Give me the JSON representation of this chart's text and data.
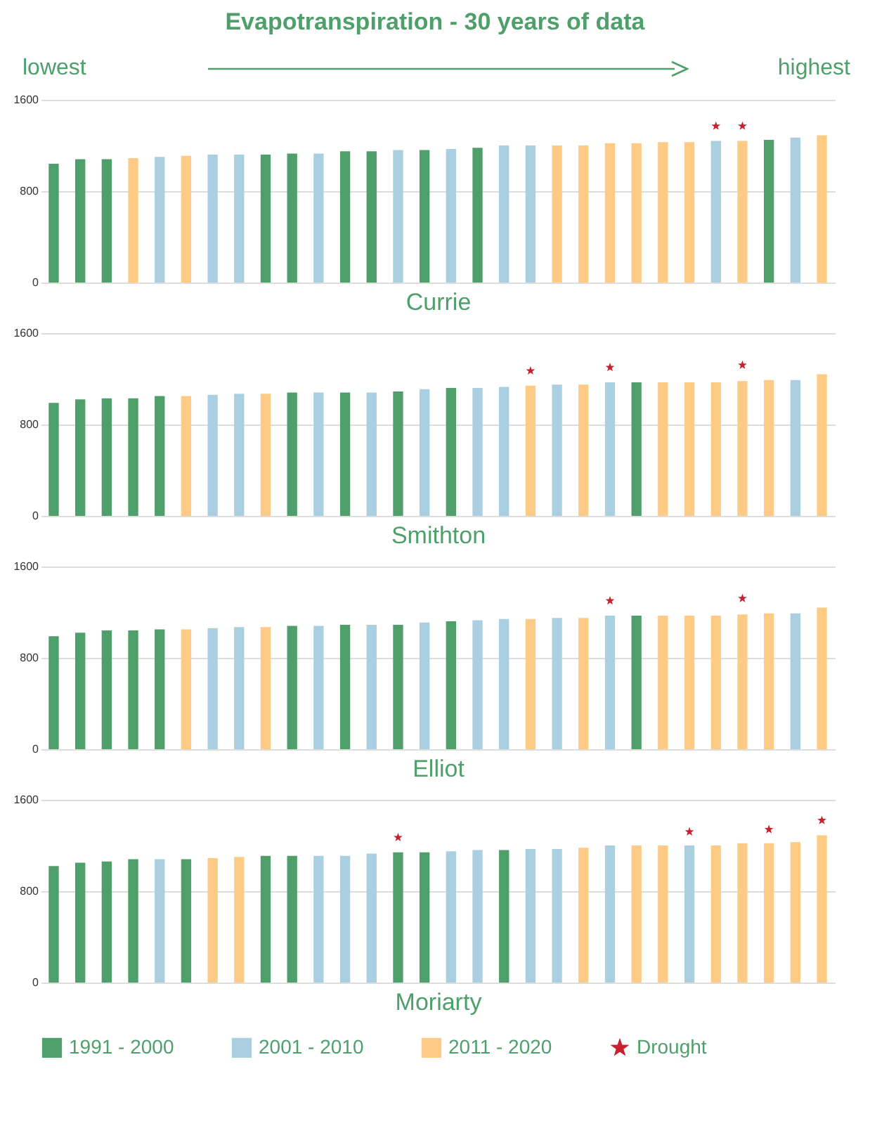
{
  "chart_data": [
    {
      "type": "bar",
      "title": "Evapotranspiration - 30 years of data",
      "annotations": [
        "lowest",
        "highest"
      ],
      "xlabel": "Currie",
      "categories": [
        null,
        null,
        null,
        null,
        null,
        null,
        null,
        null,
        null,
        null,
        null,
        null,
        null,
        null,
        null,
        null,
        null,
        null,
        null,
        null,
        null,
        null,
        null,
        null,
        null,
        null,
        null,
        null,
        null,
        null
      ],
      "ylim": [
        0,
        1600
      ],
      "yticks": [
        0,
        800,
        1600
      ],
      "grid": "y",
      "tick_labels": "y",
      "legend": false,
      "series": [
        {
          "color": "#4e9f6a",
          "values": [
            1040,
            1080,
            1080,
            null,
            null,
            null,
            null,
            null,
            1120,
            1130,
            null,
            1150,
            1150,
            null,
            1160,
            null,
            1180,
            null,
            null,
            null,
            null,
            null,
            null,
            null,
            null,
            null,
            null,
            1250,
            null,
            null
          ]
        },
        {
          "color": "#a9cfe0",
          "values": [
            null,
            null,
            null,
            null,
            1100,
            null,
            1120,
            1120,
            null,
            null,
            1130,
            null,
            null,
            1160,
            null,
            1170,
            null,
            1200,
            1200,
            null,
            null,
            null,
            null,
            null,
            null,
            1240,
            null,
            null,
            1270,
            null
          ]
        },
        {
          "color": "#fdcb85",
          "values": [
            null,
            null,
            null,
            1090,
            null,
            1110,
            null,
            null,
            null,
            null,
            null,
            null,
            null,
            null,
            null,
            null,
            null,
            null,
            null,
            1200,
            1200,
            1220,
            1220,
            1230,
            1230,
            null,
            1240,
            null,
            null,
            1290
          ]
        },
        {
          "type": "scatter",
          "marker": "star",
          "color": "#c8202e",
          "values": [
            null,
            null,
            null,
            null,
            null,
            null,
            null,
            null,
            null,
            null,
            null,
            null,
            null,
            null,
            null,
            null,
            null,
            null,
            null,
            null,
            null,
            null,
            null,
            null,
            null,
            1370,
            1370,
            null,
            null,
            null
          ]
        }
      ]
    },
    {
      "type": "bar",
      "xlabel": "Smithton",
      "categories": [
        null,
        null,
        null,
        null,
        null,
        null,
        null,
        null,
        null,
        null,
        null,
        null,
        null,
        null,
        null,
        null,
        null,
        null,
        null,
        null,
        null,
        null,
        null,
        null,
        null,
        null,
        null,
        null,
        null,
        null
      ],
      "ylim": [
        0,
        1600
      ],
      "yticks": [
        0,
        800,
        1600
      ],
      "grid": "y",
      "tick_labels": "y",
      "legend": false,
      "series": [
        {
          "color": "#4e9f6a",
          "values": [
            990,
            1020,
            1030,
            1030,
            1050,
            null,
            null,
            null,
            null,
            1080,
            null,
            1080,
            null,
            1090,
            null,
            1120,
            null,
            null,
            null,
            null,
            null,
            null,
            1170,
            null,
            null,
            null,
            null,
            null,
            null,
            null
          ]
        },
        {
          "color": "#a9cfe0",
          "values": [
            null,
            null,
            null,
            null,
            null,
            null,
            1060,
            1070,
            null,
            null,
            1080,
            null,
            1080,
            null,
            1110,
            null,
            1120,
            1130,
            null,
            1150,
            null,
            1170,
            null,
            null,
            null,
            null,
            null,
            null,
            1190,
            null
          ]
        },
        {
          "color": "#fdcb85",
          "values": [
            null,
            null,
            null,
            null,
            null,
            1050,
            null,
            null,
            1070,
            null,
            null,
            null,
            null,
            null,
            null,
            null,
            null,
            null,
            1140,
            null,
            1150,
            null,
            null,
            1170,
            1170,
            1170,
            1180,
            1190,
            null,
            1240
          ]
        },
        {
          "type": "scatter",
          "marker": "star",
          "color": "#c8202e",
          "values": [
            null,
            null,
            null,
            null,
            null,
            null,
            null,
            null,
            null,
            null,
            null,
            null,
            null,
            null,
            null,
            null,
            null,
            null,
            1270,
            null,
            null,
            1300,
            null,
            null,
            null,
            null,
            1320,
            null,
            null,
            null
          ]
        }
      ]
    },
    {
      "type": "bar",
      "xlabel": "Elliot",
      "categories": [
        null,
        null,
        null,
        null,
        null,
        null,
        null,
        null,
        null,
        null,
        null,
        null,
        null,
        null,
        null,
        null,
        null,
        null,
        null,
        null,
        null,
        null,
        null,
        null,
        null,
        null,
        null,
        null,
        null,
        null
      ],
      "ylim": [
        0,
        1600
      ],
      "yticks": [
        0,
        800,
        1600
      ],
      "grid": "y",
      "tick_labels": "y",
      "legend": false,
      "series": [
        {
          "color": "#4e9f6a",
          "values": [
            990,
            1020,
            1040,
            1040,
            1050,
            null,
            null,
            null,
            null,
            1080,
            null,
            1090,
            null,
            1090,
            null,
            1120,
            null,
            null,
            null,
            null,
            null,
            null,
            1170,
            null,
            null,
            null,
            null,
            null,
            null,
            null
          ]
        },
        {
          "color": "#a9cfe0",
          "values": [
            null,
            null,
            null,
            null,
            null,
            null,
            1060,
            1070,
            null,
            null,
            1080,
            null,
            1090,
            null,
            1110,
            null,
            1130,
            1140,
            null,
            1150,
            null,
            1170,
            null,
            null,
            null,
            null,
            null,
            null,
            1190,
            null
          ]
        },
        {
          "color": "#fdcb85",
          "values": [
            null,
            null,
            null,
            null,
            null,
            1050,
            null,
            null,
            1070,
            null,
            null,
            null,
            null,
            null,
            null,
            null,
            null,
            null,
            1140,
            null,
            1150,
            null,
            null,
            1170,
            1170,
            1170,
            1180,
            1190,
            null,
            1240
          ]
        },
        {
          "type": "scatter",
          "marker": "star",
          "color": "#c8202e",
          "values": [
            null,
            null,
            null,
            null,
            null,
            null,
            null,
            null,
            null,
            null,
            null,
            null,
            null,
            null,
            null,
            null,
            null,
            null,
            null,
            null,
            null,
            1300,
            null,
            null,
            null,
            null,
            1320,
            null,
            null,
            null
          ]
        }
      ]
    },
    {
      "type": "bar",
      "xlabel": "Moriarty",
      "categories": [
        null,
        null,
        null,
        null,
        null,
        null,
        null,
        null,
        null,
        null,
        null,
        null,
        null,
        null,
        null,
        null,
        null,
        null,
        null,
        null,
        null,
        null,
        null,
        null,
        null,
        null,
        null,
        null,
        null,
        null
      ],
      "ylim": [
        0,
        1600
      ],
      "yticks": [
        0,
        800,
        1600
      ],
      "grid": "y",
      "tick_labels": "y",
      "legend": "bottom",
      "series": [
        {
          "name": "1991 - 2000",
          "color": "#4e9f6a",
          "values": [
            1020,
            1050,
            1060,
            1080,
            null,
            1080,
            null,
            null,
            1110,
            1110,
            null,
            null,
            null,
            1140,
            1140,
            null,
            null,
            1160,
            null,
            null,
            null,
            null,
            null,
            null,
            null,
            null,
            null,
            null,
            null,
            null
          ]
        },
        {
          "name": "2001 - 2010",
          "color": "#a9cfe0",
          "values": [
            null,
            null,
            null,
            null,
            1080,
            null,
            null,
            null,
            null,
            null,
            1110,
            1110,
            1130,
            null,
            null,
            1150,
            1160,
            null,
            1170,
            1170,
            null,
            1200,
            null,
            null,
            1200,
            null,
            null,
            null,
            null,
            null
          ]
        },
        {
          "name": "2011 - 2020",
          "color": "#fdcb85",
          "values": [
            null,
            null,
            null,
            null,
            null,
            null,
            1090,
            1100,
            null,
            null,
            null,
            null,
            null,
            null,
            null,
            null,
            null,
            null,
            null,
            null,
            1180,
            null,
            1200,
            1200,
            null,
            1200,
            1220,
            1220,
            1230,
            1290
          ]
        },
        {
          "name": "Drought",
          "type": "scatter",
          "marker": "star",
          "color": "#c8202e",
          "values": [
            null,
            null,
            null,
            null,
            null,
            null,
            null,
            null,
            null,
            null,
            null,
            null,
            null,
            1270,
            null,
            null,
            null,
            null,
            null,
            null,
            null,
            null,
            null,
            null,
            1320,
            null,
            null,
            1340,
            null,
            1420
          ]
        }
      ]
    }
  ]
}
